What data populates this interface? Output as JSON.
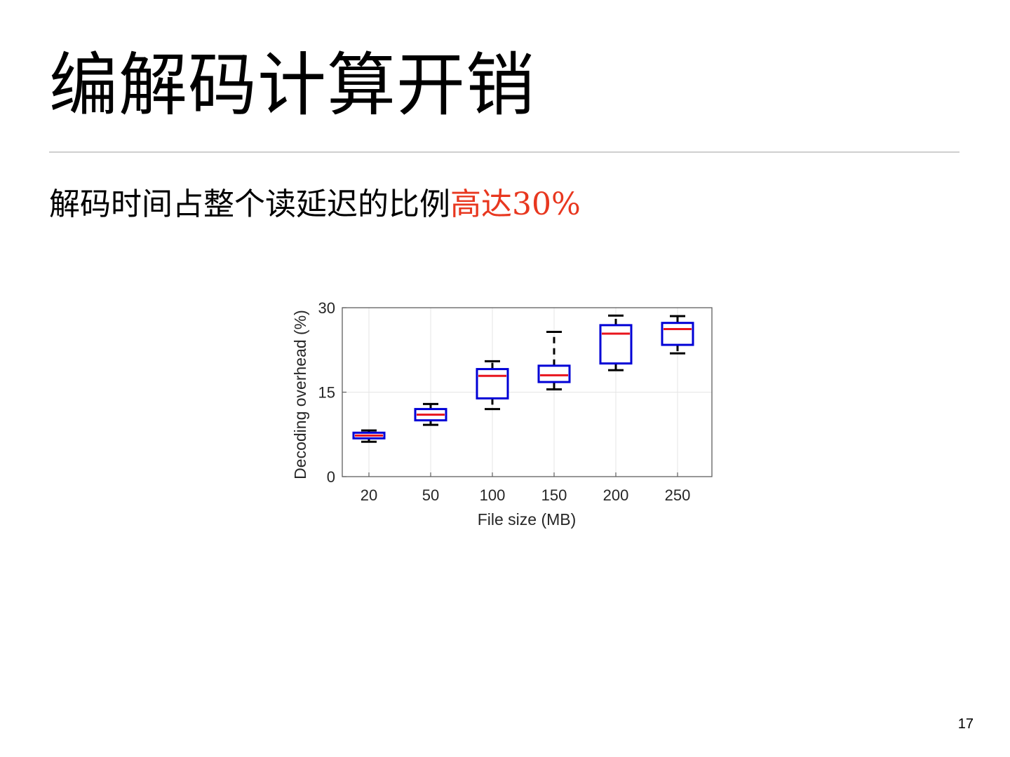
{
  "slide": {
    "title": "编解码计算开销",
    "subtitle_main": "解码时间占整个读延迟的比例",
    "subtitle_highlight": "高达",
    "subtitle_value": "30%",
    "page_number": "17"
  },
  "colors": {
    "highlight": "#e8371f",
    "box": "#0000d6",
    "median": "#e8141c",
    "whisker": "#000000"
  },
  "chart_data": {
    "type": "boxplot",
    "title": "",
    "xlabel": "File size (MB)",
    "ylabel": "Decoding overhead (%)",
    "ylim": [
      0,
      30
    ],
    "yticks": [
      0,
      15,
      30
    ],
    "grid": true,
    "categories": [
      "20",
      "50",
      "100",
      "150",
      "200",
      "250"
    ],
    "boxes": [
      {
        "category": "20",
        "whisker_low": 6.2,
        "q1": 6.8,
        "median": 7.3,
        "q3": 7.8,
        "whisker_high": 8.2
      },
      {
        "category": "50",
        "whisker_low": 9.2,
        "q1": 10.0,
        "median": 11.0,
        "q3": 12.0,
        "whisker_high": 12.9
      },
      {
        "category": "100",
        "whisker_low": 12.0,
        "q1": 13.9,
        "median": 17.9,
        "q3": 19.1,
        "whisker_high": 20.5
      },
      {
        "category": "150",
        "whisker_low": 15.5,
        "q1": 16.8,
        "median": 18.0,
        "q3": 19.7,
        "whisker_high": 25.7
      },
      {
        "category": "200",
        "whisker_low": 18.9,
        "q1": 20.1,
        "median": 25.4,
        "q3": 26.9,
        "whisker_high": 28.6
      },
      {
        "category": "250",
        "whisker_low": 21.9,
        "q1": 23.4,
        "median": 26.2,
        "q3": 27.3,
        "whisker_high": 28.5
      }
    ]
  }
}
